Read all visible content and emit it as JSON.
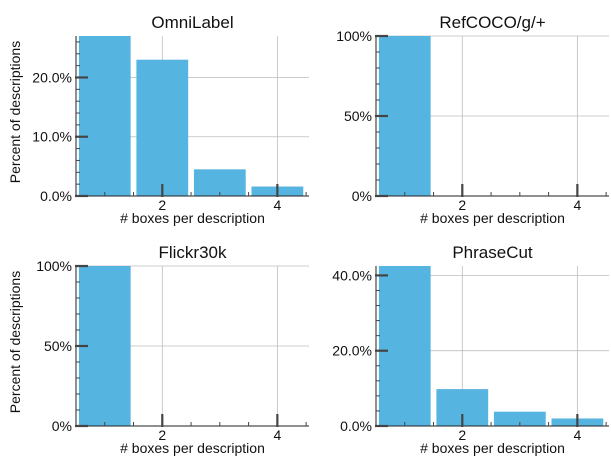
{
  "chart_data": [
    {
      "type": "bar",
      "title": "OmniLabel",
      "xlabel": "# boxes per description",
      "ylabel": "Percent of descriptions",
      "x": [
        1,
        2,
        3,
        4
      ],
      "values": [
        27.0,
        23.0,
        4.5,
        1.6
      ],
      "ylim": [
        0,
        27.0
      ],
      "yticks": [
        0,
        10,
        20
      ],
      "ytick_labels": [
        "0.0%",
        "10.0%",
        "20.0%"
      ],
      "xticks": [
        2,
        4
      ],
      "xtick_labels": [
        "2",
        "4"
      ],
      "grid": true,
      "color": "#56b4e0"
    },
    {
      "type": "bar",
      "title": "RefCOCO/g/+",
      "xlabel": "# boxes per description",
      "ylabel": "",
      "x": [
        1,
        2,
        3,
        4
      ],
      "values": [
        100,
        0,
        0,
        0
      ],
      "ylim": [
        0,
        100
      ],
      "yticks": [
        0,
        50,
        100
      ],
      "ytick_labels": [
        "0%",
        "50%",
        "100%"
      ],
      "xticks": [
        2,
        4
      ],
      "xtick_labels": [
        "2",
        "4"
      ],
      "grid": true,
      "color": "#56b4e0"
    },
    {
      "type": "bar",
      "title": "Flickr30k",
      "xlabel": "# boxes per description",
      "ylabel": "Percent of descriptions",
      "x": [
        1,
        2,
        3,
        4
      ],
      "values": [
        100,
        0,
        0,
        0
      ],
      "ylim": [
        0,
        100
      ],
      "yticks": [
        0,
        50,
        100
      ],
      "ytick_labels": [
        "0%",
        "50%",
        "100%"
      ],
      "xticks": [
        2,
        4
      ],
      "xtick_labels": [
        "2",
        "4"
      ],
      "grid": true,
      "color": "#56b4e0"
    },
    {
      "type": "bar",
      "title": "PhraseCut",
      "xlabel": "# boxes per description",
      "ylabel": "",
      "x": [
        1,
        2,
        3,
        4
      ],
      "values": [
        42.5,
        9.8,
        3.8,
        2.0
      ],
      "ylim": [
        0,
        42.5
      ],
      "yticks": [
        0,
        20,
        40
      ],
      "ytick_labels": [
        "0.0%",
        "20.0%",
        "40.0%"
      ],
      "xticks": [
        2,
        4
      ],
      "xtick_labels": [
        "2",
        "4"
      ],
      "grid": true,
      "color": "#56b4e0"
    }
  ]
}
